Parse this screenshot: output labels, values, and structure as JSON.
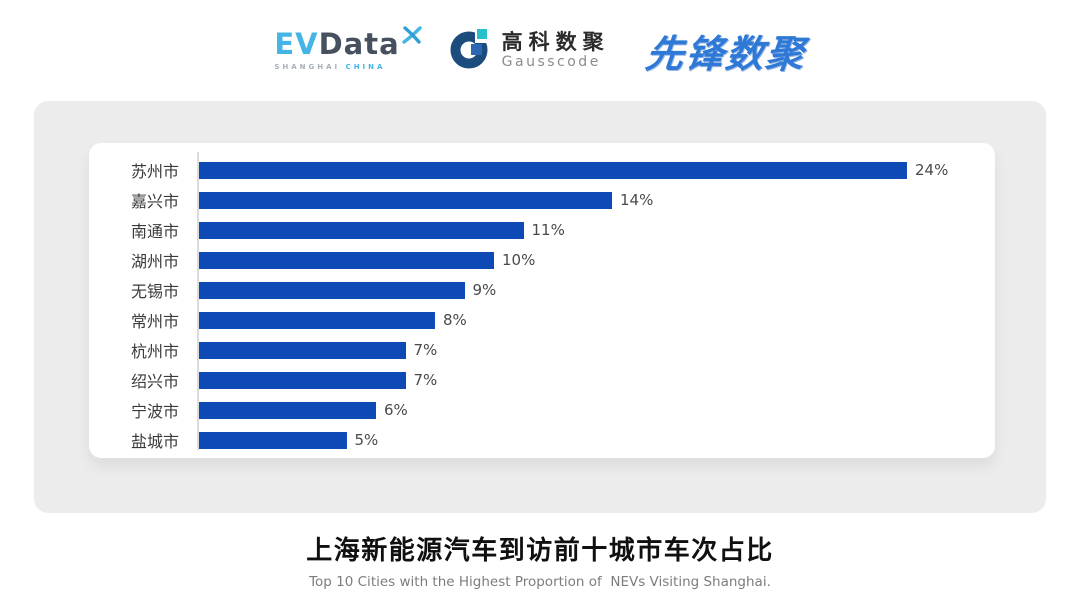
{
  "header": {
    "evdata": {
      "part1": "EV",
      "part2": "Data",
      "sub1": "SHANGHAI",
      "sub2": "CHINA"
    },
    "gausscode": {
      "name_cn": "高科数聚",
      "name_en": "Gausscode"
    },
    "pioneer": {
      "name": "先锋数聚"
    }
  },
  "chart_data": {
    "type": "bar",
    "orientation": "horizontal",
    "title": "上海新能源汽车到访前十城市车次占比",
    "subtitle": "Top 10 Cities with the Highest Proportion of  NEVs Visiting Shanghai.",
    "categories": [
      "苏州市",
      "嘉兴市",
      "南通市",
      "湖州市",
      "无锡市",
      "常州市",
      "杭州市",
      "绍兴市",
      "宁波市",
      "盐城市"
    ],
    "values": [
      24,
      14,
      11,
      10,
      9,
      8,
      7,
      7,
      6,
      5
    ],
    "value_labels": [
      "24%",
      "14%",
      "11%",
      "10%",
      "9%",
      "8%",
      "7%",
      "7%",
      "6%",
      "5%"
    ],
    "xlim": [
      0,
      24
    ],
    "grid": false,
    "legend": false,
    "bar_color": "#0D4AB5"
  },
  "colors": {
    "bar": "#0D4AB5",
    "card_bg": "#ececec",
    "ev_blue": "#45B5E5",
    "ev_dark": "#46505F",
    "gauss_navy": "#1C4B7D",
    "gauss_teal": "#27C2C9",
    "gauss_blue": "#2B67B2",
    "pioneer_blue": "#2F79D6"
  }
}
